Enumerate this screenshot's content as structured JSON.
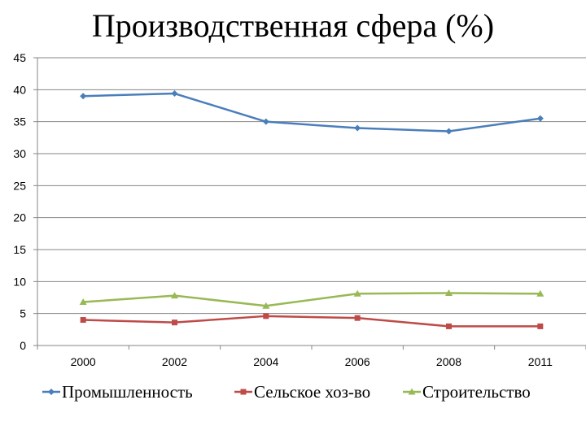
{
  "chart_data": {
    "type": "line",
    "title": "Производственная сфера (%)",
    "categories": [
      "2000",
      "2002",
      "2004",
      "2006",
      "2008",
      "2011"
    ],
    "ylim": [
      0,
      45
    ],
    "yticks": [
      0,
      5,
      10,
      15,
      20,
      25,
      30,
      35,
      40,
      45
    ],
    "grid": true,
    "legend_position": "bottom",
    "series": [
      {
        "name": "Промышленность",
        "color": "#4a7ebb",
        "marker": "diamond",
        "values": [
          39.0,
          39.4,
          35.0,
          34.0,
          33.5,
          35.5
        ]
      },
      {
        "name": "Сельское хоз-во",
        "color": "#be4b48",
        "marker": "square",
        "values": [
          4.0,
          3.6,
          4.6,
          4.3,
          3.0,
          3.0
        ]
      },
      {
        "name": "Строительство",
        "color": "#98b954",
        "marker": "triangle",
        "values": [
          6.8,
          7.8,
          6.2,
          8.1,
          8.2,
          8.1
        ]
      }
    ]
  }
}
